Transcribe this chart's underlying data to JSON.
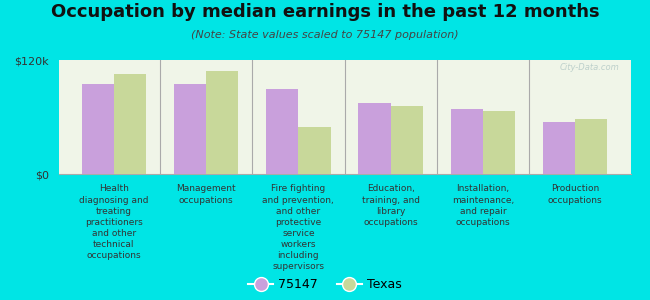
{
  "title": "Occupation by median earnings in the past 12 months",
  "subtitle": "(Note: State values scaled to 75147 population)",
  "background_color": "#00e5e5",
  "plot_bg_color": "#f0f5e8",
  "categories": [
    "Health\ndiagnosing and\ntreating\npractitioners\nand other\ntechnical\noccupations",
    "Management\noccupations",
    "Fire fighting\nand prevention,\nand other\nprotective\nservice\nworkers\nincluding\nsupervisors",
    "Education,\ntraining, and\nlibrary\noccupations",
    "Installation,\nmaintenance,\nand repair\noccupations",
    "Production\noccupations"
  ],
  "values_75147": [
    95000,
    95000,
    90000,
    75000,
    68000,
    55000
  ],
  "values_texas": [
    105000,
    108000,
    50000,
    72000,
    66000,
    58000
  ],
  "color_75147": "#c9a0dc",
  "color_texas": "#c8d89a",
  "ylim": [
    0,
    120000
  ],
  "ytick_labels": [
    "$0",
    "$120k"
  ],
  "legend_labels": [
    "75147",
    "Texas"
  ],
  "bar_width": 0.35,
  "watermark": "City-Data.com",
  "title_fontsize": 13,
  "subtitle_fontsize": 8,
  "xlabel_fontsize": 6.5,
  "ytick_fontsize": 8,
  "legend_fontsize": 9
}
